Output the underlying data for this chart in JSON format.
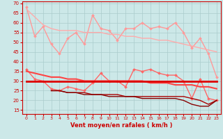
{
  "x": [
    0,
    1,
    2,
    3,
    4,
    5,
    6,
    7,
    8,
    9,
    10,
    11,
    12,
    13,
    14,
    15,
    16,
    17,
    18,
    19,
    20,
    21,
    22,
    23
  ],
  "series": [
    {
      "name": "rafales_scatter",
      "color": "#ff9999",
      "lw": 1.0,
      "marker": "D",
      "markersize": 2.0,
      "y": [
        68,
        53,
        58,
        49,
        44,
        52,
        55,
        49,
        64,
        57,
        56,
        51,
        57,
        57,
        60,
        57,
        58,
        57,
        60,
        55,
        47,
        52,
        44,
        32
      ]
    },
    {
      "name": "rafales_trend",
      "color": "#ffaaaa",
      "lw": 1.0,
      "marker": null,
      "markersize": 0,
      "y": [
        67,
        63,
        59,
        57,
        56,
        56,
        56,
        55,
        55,
        55,
        54,
        54,
        53,
        53,
        52,
        52,
        51,
        51,
        50,
        49,
        48,
        47,
        46,
        45
      ]
    },
    {
      "name": "vent_moyen_scatter",
      "color": "#ff6666",
      "lw": 1.0,
      "marker": "D",
      "markersize": 2.0,
      "y": [
        36,
        31,
        30,
        26,
        25,
        27,
        26,
        25,
        29,
        34,
        30,
        30,
        27,
        36,
        35,
        36,
        34,
        33,
        33,
        30,
        21,
        31,
        21,
        20
      ]
    },
    {
      "name": "vent_moyen_trend",
      "color": "#ff4444",
      "lw": 1.5,
      "marker": null,
      "markersize": 0,
      "y": [
        35,
        34,
        33,
        32,
        32,
        31,
        31,
        30,
        30,
        30,
        30,
        30,
        30,
        30,
        30,
        29,
        29,
        29,
        28,
        28,
        28,
        27,
        27,
        26
      ]
    },
    {
      "name": "vent_moyen_flat",
      "color": "#dd0000",
      "lw": 2.0,
      "marker": null,
      "markersize": 0,
      "y": [
        30,
        30,
        30,
        30,
        30,
        30,
        30,
        30,
        30,
        30,
        30,
        30,
        30,
        30,
        30,
        30,
        30,
        30,
        30,
        30,
        30,
        30,
        30,
        30
      ]
    },
    {
      "name": "vent_min_line1",
      "color": "#aa0000",
      "lw": 1.0,
      "marker": null,
      "markersize": 0,
      "y": [
        null,
        null,
        null,
        25,
        25,
        24,
        24,
        24,
        23,
        23,
        23,
        23,
        22,
        22,
        22,
        22,
        22,
        22,
        22,
        22,
        21,
        20,
        18,
        20
      ]
    },
    {
      "name": "vent_min_line2",
      "color": "#880000",
      "lw": 1.0,
      "marker": null,
      "markersize": 0,
      "y": [
        null,
        null,
        null,
        25,
        25,
        24,
        24,
        23,
        23,
        23,
        22,
        22,
        22,
        22,
        21,
        21,
        21,
        21,
        21,
        20,
        18,
        17,
        17,
        20
      ]
    }
  ],
  "xlim": [
    -0.5,
    23.5
  ],
  "ylim": [
    13,
    71
  ],
  "yticks": [
    15,
    20,
    25,
    30,
    35,
    40,
    45,
    50,
    55,
    60,
    65,
    70
  ],
  "xticks": [
    0,
    1,
    2,
    3,
    4,
    5,
    6,
    7,
    8,
    9,
    10,
    11,
    12,
    13,
    14,
    15,
    16,
    17,
    18,
    19,
    20,
    21,
    22,
    23
  ],
  "xlabel": "Vent moyen/en rafales ( km/h )",
  "bg_color": "#cce8e8",
  "grid_color": "#aacccc",
  "axis_color": "#cc0000",
  "label_color": "#cc0000",
  "tick_color": "#cc0000"
}
